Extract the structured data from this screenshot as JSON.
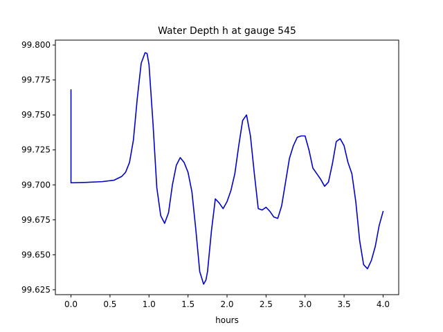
{
  "chart_data": {
    "type": "line",
    "title": "Water Depth h at gauge 545",
    "xlabel": "hours",
    "ylabel": "",
    "xlim": [
      -0.2,
      4.2
    ],
    "ylim": [
      99.6215,
      99.8035
    ],
    "xticks": [
      "0.0",
      "0.5",
      "1.0",
      "1.5",
      "2.0",
      "2.5",
      "3.0",
      "3.5",
      "4.0"
    ],
    "yticks": [
      "99.625",
      "99.650",
      "99.675",
      "99.700",
      "99.725",
      "99.750",
      "99.775",
      "99.800"
    ],
    "grid": false,
    "series": [
      {
        "color": "#0000cc",
        "x": [
          0.0,
          0.0,
          0.0,
          0.2,
          0.4,
          0.55,
          0.65,
          0.7,
          0.75,
          0.8,
          0.85,
          0.9,
          0.95,
          0.975,
          1.0,
          1.05,
          1.1,
          1.15,
          1.2,
          1.25,
          1.3,
          1.35,
          1.4,
          1.45,
          1.5,
          1.55,
          1.6,
          1.65,
          1.7,
          1.73,
          1.75,
          1.8,
          1.85,
          1.9,
          1.95,
          2.0,
          2.05,
          2.1,
          2.15,
          2.2,
          2.25,
          2.3,
          2.35,
          2.4,
          2.45,
          2.5,
          2.55,
          2.6,
          2.65,
          2.7,
          2.75,
          2.8,
          2.85,
          2.9,
          2.95,
          3.0,
          3.05,
          3.1,
          3.15,
          3.2,
          3.25,
          3.3,
          3.35,
          3.4,
          3.45,
          3.5,
          3.55,
          3.6,
          3.65,
          3.7,
          3.75,
          3.8,
          3.85,
          3.9,
          3.95,
          4.0
        ],
        "y": [
          99.768,
          99.7015,
          99.7015,
          99.7018,
          99.7023,
          99.7033,
          99.706,
          99.709,
          99.716,
          99.732,
          99.762,
          99.787,
          99.7945,
          99.794,
          99.786,
          99.745,
          99.698,
          99.678,
          99.6725,
          99.68,
          99.7,
          99.714,
          99.7195,
          99.716,
          99.709,
          99.695,
          99.668,
          99.638,
          99.629,
          99.632,
          99.638,
          99.667,
          99.69,
          99.687,
          99.683,
          99.688,
          99.696,
          99.708,
          99.728,
          99.746,
          99.75,
          99.735,
          99.708,
          99.683,
          99.682,
          99.684,
          99.681,
          99.677,
          99.676,
          99.685,
          99.702,
          99.719,
          99.728,
          99.734,
          99.735,
          99.735,
          99.725,
          99.712,
          99.708,
          99.704,
          99.699,
          99.702,
          99.715,
          99.731,
          99.733,
          99.728,
          99.716,
          99.708,
          99.688,
          99.66,
          99.643,
          99.64,
          99.646,
          99.656,
          99.671,
          99.681
        ]
      }
    ]
  }
}
